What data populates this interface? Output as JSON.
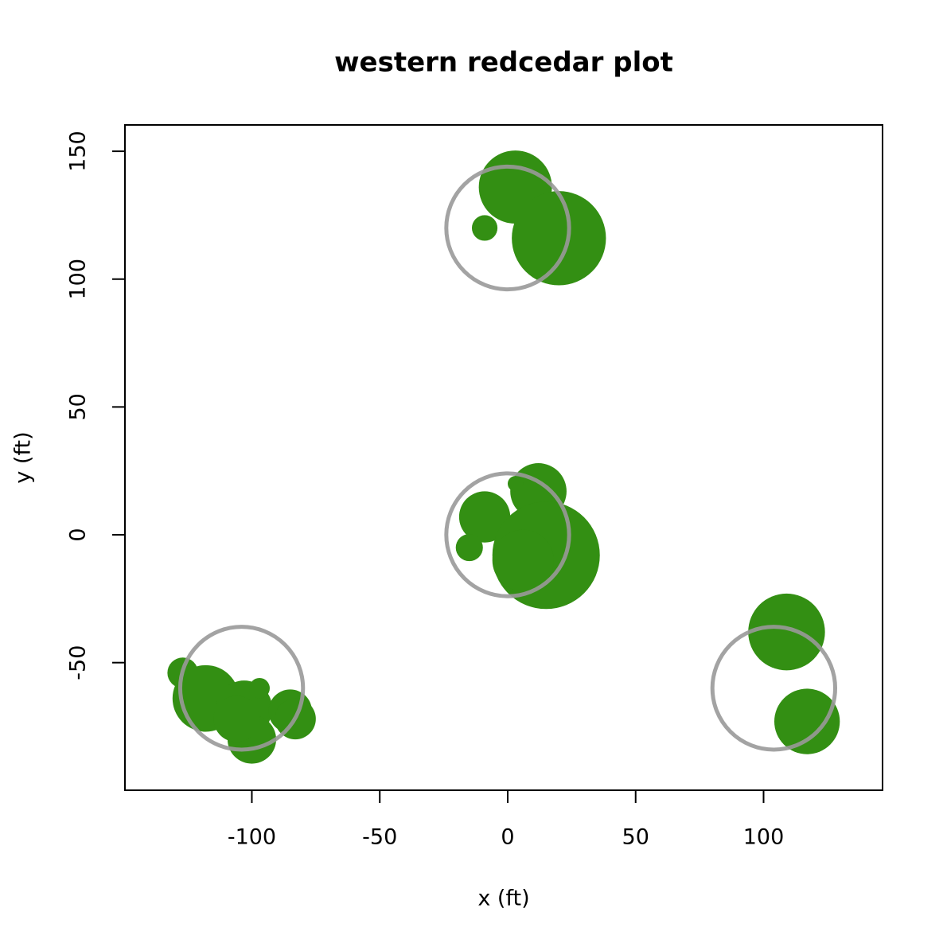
{
  "chart_data": {
    "type": "bubble",
    "title": "western redcedar plot",
    "x_label": "x (ft)",
    "y_label": "y (ft)",
    "xlim": [
      -149.6,
      146.5
    ],
    "ylim": [
      -99.9,
      160.3
    ],
    "xticks": [
      -100,
      -50,
      0,
      50,
      100
    ],
    "yticks": [
      -50,
      0,
      50,
      100,
      150
    ],
    "series": [
      {
        "color": "#338f13",
        "filled": true,
        "x": [
          3,
          20,
          -9,
          12,
          3,
          -9,
          -15,
          15,
          6,
          -127,
          -118,
          -103,
          -100,
          -97,
          -85,
          -83,
          -106,
          109,
          117
        ],
        "y": [
          136,
          116,
          120,
          17,
          20,
          7,
          -5,
          -8,
          -10,
          -54,
          -64,
          -68,
          -80,
          -60,
          -69,
          -72,
          -72,
          -38,
          -73
        ],
        "r": [
          14.3,
          18.4,
          5,
          11,
          3,
          10,
          5.3,
          21,
          12,
          6,
          13,
          11,
          9.5,
          4,
          8.5,
          8,
          9,
          15,
          12.8
        ]
      },
      {
        "color": "#999999",
        "filled": false,
        "x": [
          0,
          0,
          -104,
          104
        ],
        "y": [
          120,
          0,
          -60,
          -60
        ],
        "r": [
          24,
          24,
          24,
          24
        ]
      }
    ]
  }
}
